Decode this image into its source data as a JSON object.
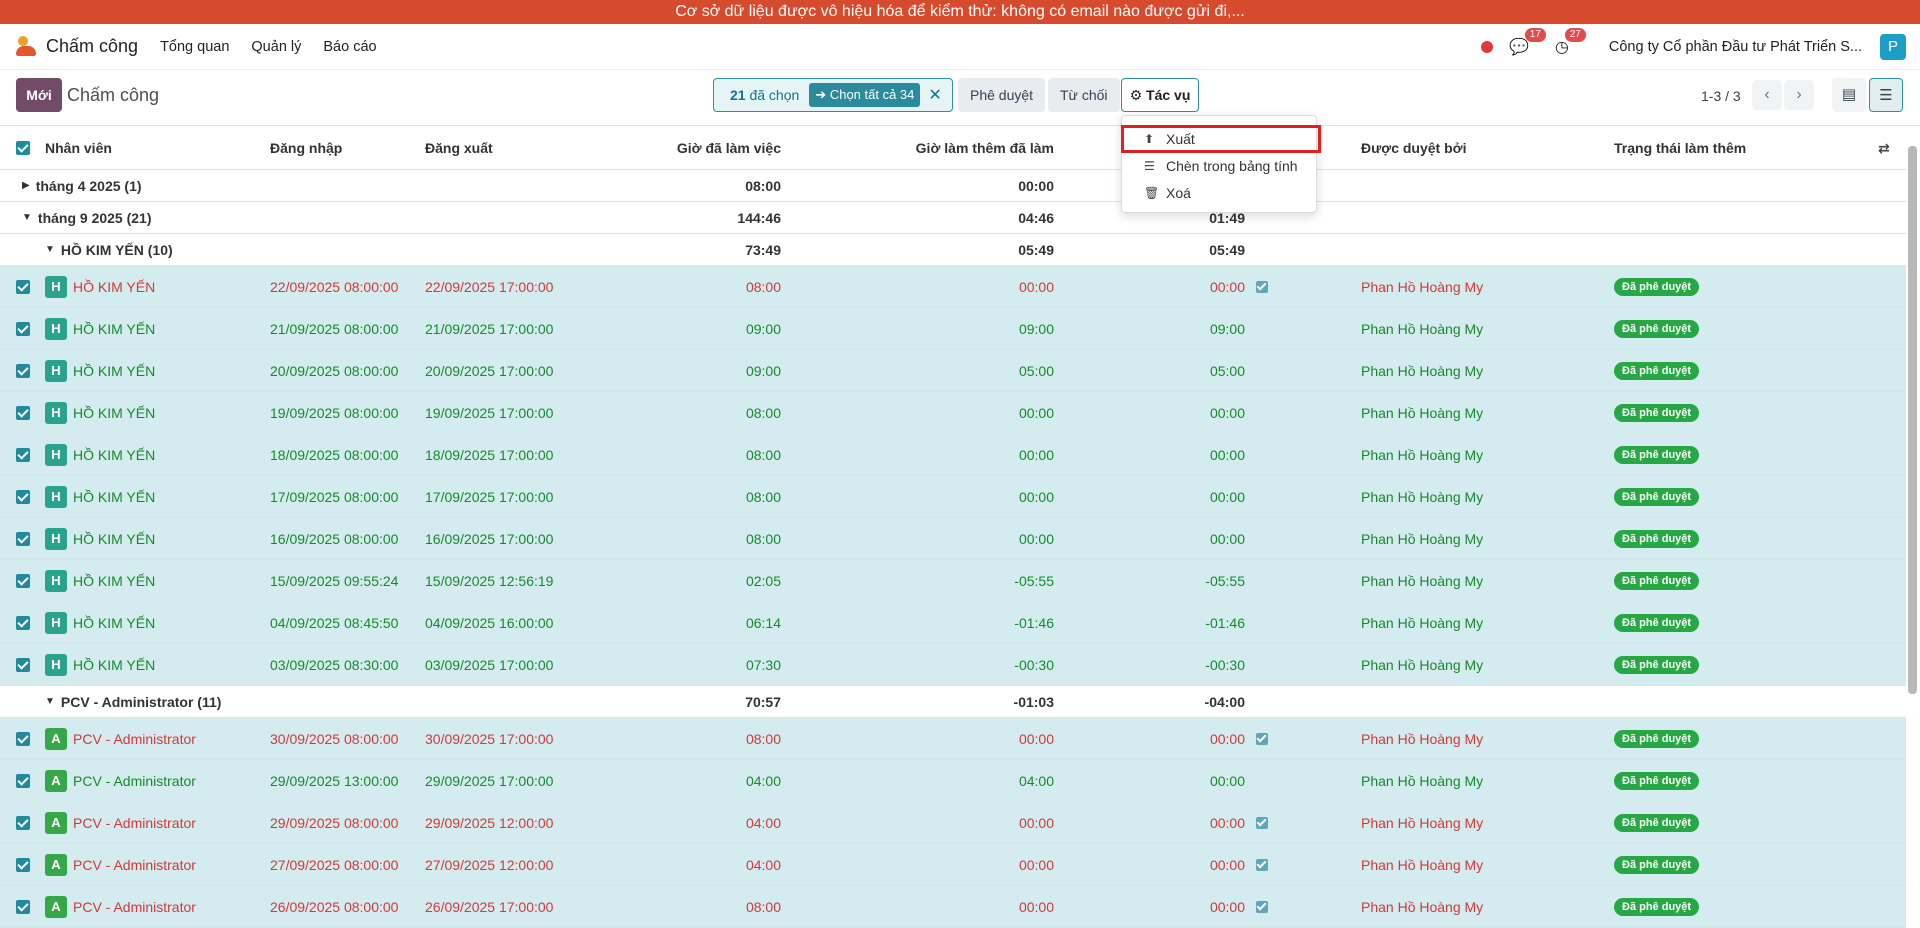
{
  "banner": "Cơ sở dữ liệu được vô hiệu hóa để kiểm thử: không có email nào được gửi đi,...",
  "nav": {
    "app_name": "Chấm công",
    "menu": [
      "Tổng quan",
      "Quản lý",
      "Báo cáo"
    ],
    "messages_badge": "17",
    "activities_badge": "27",
    "company": "Công ty Cổ phần Đầu tư Phát Triển S...",
    "avatar": "P"
  },
  "control": {
    "new_label": "Mới",
    "title": "Chấm công",
    "selected_count": "21",
    "selected_label": "đã chọn",
    "select_all": "Chọn tất cả 34",
    "approve": "Phê duyệt",
    "refuse": "Từ chối",
    "actions": "Tác vụ",
    "pager": "1-3 / 3"
  },
  "actions_menu": [
    "Xuất",
    "Chèn trong bảng tính",
    "Xoá"
  ],
  "columns": [
    "Nhân viên",
    "Đăng nhập",
    "Đăng xuất",
    "Giờ đã làm việc",
    "Giờ làm thêm đã làm",
    "Được duyệt bởi",
    "Trạng thái làm thêm"
  ],
  "groups": [
    {
      "label": "tháng 4 2025 (1)",
      "worked": "08:00",
      "extra": "00:00",
      "overtime": ""
    },
    {
      "label": "tháng 9 2025 (21)",
      "worked": "144:46",
      "extra": "04:46",
      "overtime": "01:49"
    },
    {
      "label": "HỒ KIM YẾN (10)",
      "worked": "73:49",
      "extra": "05:49",
      "overtime": "05:49"
    },
    {
      "label": "PCV - Administrator (11)",
      "worked": "70:57",
      "extra": "-01:03",
      "overtime": "-04:00"
    }
  ],
  "records": [
    {
      "initial": "H",
      "employee": "HỒ KIM YẾN",
      "check_in": "22/09/2025 08:00:00",
      "check_out": "22/09/2025 17:00:00",
      "worked": "08:00",
      "extra": "00:00",
      "overtime": "00:00",
      "validated": true,
      "approver": "Phan Hồ Hoàng My",
      "status": "Đã phê duyệt",
      "color": "red"
    },
    {
      "initial": "H",
      "employee": "HỒ KIM YẾN",
      "check_in": "21/09/2025 08:00:00",
      "check_out": "21/09/2025 17:00:00",
      "worked": "09:00",
      "extra": "09:00",
      "overtime": "09:00",
      "validated": false,
      "approver": "Phan Hồ Hoàng My",
      "status": "Đã phê duyệt",
      "color": "green"
    },
    {
      "initial": "H",
      "employee": "HỒ KIM YẾN",
      "check_in": "20/09/2025 08:00:00",
      "check_out": "20/09/2025 17:00:00",
      "worked": "09:00",
      "extra": "05:00",
      "overtime": "05:00",
      "validated": false,
      "approver": "Phan Hồ Hoàng My",
      "status": "Đã phê duyệt",
      "color": "green"
    },
    {
      "initial": "H",
      "employee": "HỒ KIM YẾN",
      "check_in": "19/09/2025 08:00:00",
      "check_out": "19/09/2025 17:00:00",
      "worked": "08:00",
      "extra": "00:00",
      "overtime": "00:00",
      "validated": false,
      "approver": "Phan Hồ Hoàng My",
      "status": "Đã phê duyệt",
      "color": "green"
    },
    {
      "initial": "H",
      "employee": "HỒ KIM YẾN",
      "check_in": "18/09/2025 08:00:00",
      "check_out": "18/09/2025 17:00:00",
      "worked": "08:00",
      "extra": "00:00",
      "overtime": "00:00",
      "validated": false,
      "approver": "Phan Hồ Hoàng My",
      "status": "Đã phê duyệt",
      "color": "green"
    },
    {
      "initial": "H",
      "employee": "HỒ KIM YẾN",
      "check_in": "17/09/2025 08:00:00",
      "check_out": "17/09/2025 17:00:00",
      "worked": "08:00",
      "extra": "00:00",
      "overtime": "00:00",
      "validated": false,
      "approver": "Phan Hồ Hoàng My",
      "status": "Đã phê duyệt",
      "color": "green"
    },
    {
      "initial": "H",
      "employee": "HỒ KIM YẾN",
      "check_in": "16/09/2025 08:00:00",
      "check_out": "16/09/2025 17:00:00",
      "worked": "08:00",
      "extra": "00:00",
      "overtime": "00:00",
      "validated": false,
      "approver": "Phan Hồ Hoàng My",
      "status": "Đã phê duyệt",
      "color": "green"
    },
    {
      "initial": "H",
      "employee": "HỒ KIM YẾN",
      "check_in": "15/09/2025 09:55:24",
      "check_out": "15/09/2025 12:56:19",
      "worked": "02:05",
      "extra": "-05:55",
      "overtime": "-05:55",
      "validated": false,
      "approver": "Phan Hồ Hoàng My",
      "status": "Đã phê duyệt",
      "color": "green"
    },
    {
      "initial": "H",
      "employee": "HỒ KIM YẾN",
      "check_in": "04/09/2025 08:45:50",
      "check_out": "04/09/2025 16:00:00",
      "worked": "06:14",
      "extra": "-01:46",
      "overtime": "-01:46",
      "validated": false,
      "approver": "Phan Hồ Hoàng My",
      "status": "Đã phê duyệt",
      "color": "green"
    },
    {
      "initial": "H",
      "employee": "HỒ KIM YẾN",
      "check_in": "03/09/2025 08:30:00",
      "check_out": "03/09/2025 17:00:00",
      "worked": "07:30",
      "extra": "-00:30",
      "overtime": "-00:30",
      "validated": false,
      "approver": "Phan Hồ Hoàng My",
      "status": "Đã phê duyệt",
      "color": "green"
    },
    {
      "initial": "A",
      "employee": "PCV - Administrator",
      "check_in": "30/09/2025 08:00:00",
      "check_out": "30/09/2025 17:00:00",
      "worked": "08:00",
      "extra": "00:00",
      "overtime": "00:00",
      "validated": true,
      "approver": "Phan Hồ Hoàng My",
      "status": "Đã phê duyệt",
      "color": "red"
    },
    {
      "initial": "A",
      "employee": "PCV - Administrator",
      "check_in": "29/09/2025 13:00:00",
      "check_out": "29/09/2025 17:00:00",
      "worked": "04:00",
      "extra": "04:00",
      "overtime": "00:00",
      "validated": false,
      "approver": "Phan Hồ Hoàng My",
      "status": "Đã phê duyệt",
      "color": "green"
    },
    {
      "initial": "A",
      "employee": "PCV - Administrator",
      "check_in": "29/09/2025 08:00:00",
      "check_out": "29/09/2025 12:00:00",
      "worked": "04:00",
      "extra": "00:00",
      "overtime": "00:00",
      "validated": true,
      "approver": "Phan Hồ Hoàng My",
      "status": "Đã phê duyệt",
      "color": "red"
    },
    {
      "initial": "A",
      "employee": "PCV - Administrator",
      "check_in": "27/09/2025 08:00:00",
      "check_out": "27/09/2025 12:00:00",
      "worked": "04:00",
      "extra": "00:00",
      "overtime": "00:00",
      "validated": true,
      "approver": "Phan Hồ Hoàng My",
      "status": "Đã phê duyệt",
      "color": "red"
    },
    {
      "initial": "A",
      "employee": "PCV - Administrator",
      "check_in": "26/09/2025 08:00:00",
      "check_out": "26/09/2025 17:00:00",
      "worked": "08:00",
      "extra": "00:00",
      "overtime": "00:00",
      "validated": true,
      "approver": "Phan Hồ Hoàng My",
      "status": "Đã phê duyệt",
      "color": "red"
    }
  ],
  "colors": {
    "red": "#d03a3a",
    "green": "#17892c",
    "avatar_H": "#2aa38c",
    "avatar_A": "#36a84a",
    "brand": "#714b67",
    "accent": "#2a8b9c"
  }
}
